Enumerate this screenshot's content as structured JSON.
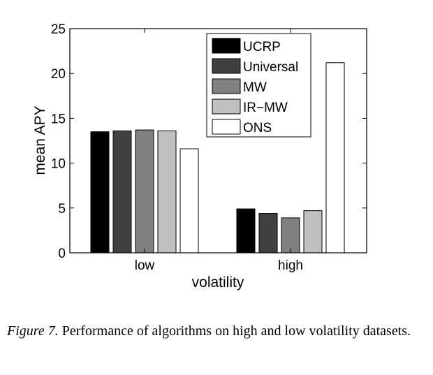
{
  "chart_data": {
    "type": "bar",
    "categories": [
      "low",
      "high"
    ],
    "xlabel": "volatility",
    "ylabel": "mean APY",
    "ylim": [
      0,
      25
    ],
    "yticks": [
      "0",
      "5",
      "10",
      "15",
      "20",
      "25"
    ],
    "grid": false,
    "legend_position": "top-right",
    "series": [
      {
        "name": "UCRP",
        "color": "#000000",
        "values": [
          13.5,
          4.9
        ]
      },
      {
        "name": "Universal",
        "color": "#404040",
        "values": [
          13.6,
          4.4
        ]
      },
      {
        "name": "MW",
        "color": "#808080",
        "values": [
          13.7,
          3.9
        ]
      },
      {
        "name": "IR−MW",
        "color": "#c0c0c0",
        "values": [
          13.6,
          4.7
        ]
      },
      {
        "name": "ONS",
        "color": "#ffffff",
        "values": [
          11.6,
          21.2
        ]
      }
    ]
  },
  "caption": {
    "label": "Figure 7.",
    "text": "Performance of algorithms on high and low volatility datasets."
  }
}
